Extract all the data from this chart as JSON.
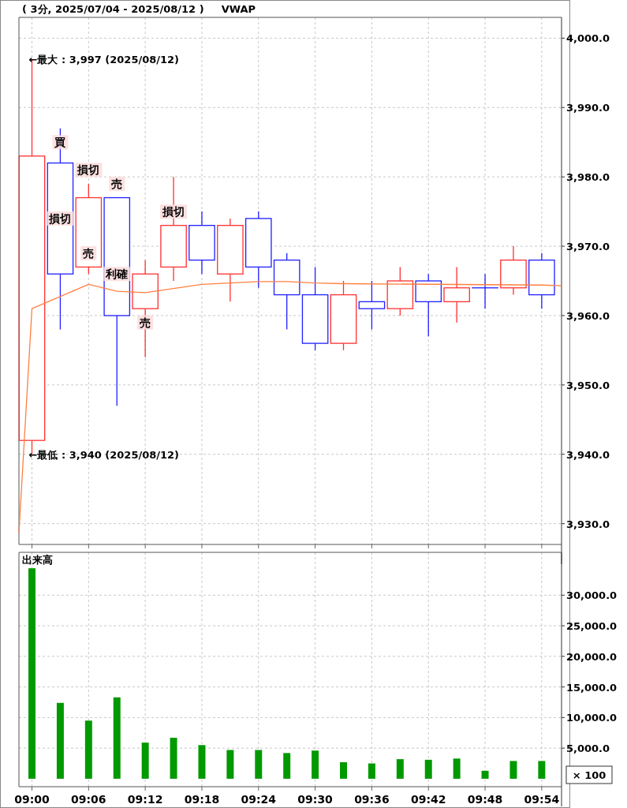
{
  "chart_data": [
    {
      "type": "candlestick",
      "title": "( 3分, 2025/07/04 - 2025/08/12 )",
      "x": [
        9.0,
        9.05,
        9.1,
        9.15,
        9.2,
        9.25,
        9.3,
        9.35,
        9.4,
        9.45,
        9.5,
        9.55,
        9.6,
        9.65,
        9.7,
        9.75,
        9.8,
        9.85,
        9.9
      ],
      "ohlc": [
        [
          3942,
          3997,
          3940,
          3983
        ],
        [
          3982,
          3987,
          3958,
          3966
        ],
        [
          3967,
          3979,
          3966,
          3977
        ],
        [
          3977,
          3977,
          3947,
          3960
        ],
        [
          3961,
          3968,
          3954,
          3966
        ],
        [
          3967,
          3980,
          3965,
          3973
        ],
        [
          3973,
          3975,
          3966,
          3968
        ],
        [
          3966,
          3974,
          3962,
          3973
        ],
        [
          3974,
          3975,
          3964,
          3967
        ],
        [
          3968,
          3969,
          3958,
          3963
        ],
        [
          3963,
          3967,
          3955,
          3956
        ],
        [
          3956,
          3965,
          3955,
          3963
        ],
        [
          3962,
          3965,
          3958,
          3961
        ],
        [
          3961,
          3967,
          3960,
          3965
        ],
        [
          3965,
          3966,
          3957,
          3962
        ],
        [
          3962,
          3967,
          3959,
          3964
        ],
        [
          3964,
          3966,
          3961,
          3964
        ],
        [
          3964,
          3970,
          3963,
          3968
        ],
        [
          3968,
          3969,
          3961,
          3963
        ]
      ],
      "colors": [
        "#ff3030",
        "#2020ff",
        "#ff3030",
        "#2020ff",
        "#ff3030",
        "#ff3030",
        "#2020ff",
        "#ff3030",
        "#2020ff",
        "#2020ff",
        "#2020ff",
        "#ff3030",
        "#2020ff",
        "#ff3030",
        "#2020ff",
        "#ff3030",
        "#2020ff",
        "#ff3030",
        "#2020ff"
      ],
      "series": [
        {
          "name": "VWAP",
          "type": "line",
          "color": "#ff8040",
          "x": [
            8.977,
            9.0,
            9.1,
            9.15,
            9.2,
            9.3,
            9.4,
            9.45,
            9.5,
            9.55,
            9.9,
            9.935
          ],
          "values": [
            3928.7,
            3961,
            3964.5,
            3963.5,
            3963.3,
            3964.5,
            3964.9,
            3964.9,
            3964.7,
            3964.6,
            3964.4,
            3964.3
          ]
        }
      ],
      "annotations": [
        {
          "text": "←最大 : 3,997 (2025/08/12)",
          "x": 9.0,
          "y": 3997
        },
        {
          "text": "←最低 : 3,940 (2025/08/12)",
          "x": 9.0,
          "y": 3940
        },
        {
          "text": "買",
          "x": 9.05,
          "y": 3985
        },
        {
          "text": "損切",
          "x": 9.05,
          "y": 3974
        },
        {
          "text": "損切",
          "x": 9.1,
          "y": 3981
        },
        {
          "text": "売",
          "x": 9.1,
          "y": 3969
        },
        {
          "text": "売",
          "x": 9.15,
          "y": 3979
        },
        {
          "text": "利確",
          "x": 9.15,
          "y": 3966
        },
        {
          "text": "売",
          "x": 9.2,
          "y": 3959
        },
        {
          "text": "損切",
          "x": 9.25,
          "y": 3975
        }
      ],
      "xlim": [
        8.977,
        9.935
      ],
      "ylim": [
        3927,
        4003
      ],
      "xticks": [
        {
          "value": 9.0,
          "label": null
        },
        {
          "value": 9.1,
          "label": null
        },
        {
          "value": 9.2,
          "label": null
        },
        {
          "value": 9.3,
          "label": null
        },
        {
          "value": 9.4,
          "label": null
        },
        {
          "value": 9.5,
          "label": null
        },
        {
          "value": 9.6,
          "label": null
        },
        {
          "value": 9.7,
          "label": null
        },
        {
          "value": 9.8,
          "label": null
        },
        {
          "value": 9.9,
          "label": null
        }
      ],
      "yticks": [
        {
          "value": 3930,
          "label": "3,930.0"
        },
        {
          "value": 3940,
          "label": "3,940.0"
        },
        {
          "value": 3950,
          "label": "3,950.0"
        },
        {
          "value": 3960,
          "label": "3,960.0"
        },
        {
          "value": 3970,
          "label": "3,970.0"
        },
        {
          "value": 3980,
          "label": "3,980.0"
        },
        {
          "value": 3990,
          "label": "3,990.0"
        },
        {
          "value": 4000,
          "label": "4,000.0"
        }
      ],
      "grid": true,
      "tick_labels": "y"
    },
    {
      "type": "bar",
      "title": "出来高",
      "color": "#009900",
      "x": [
        9.0,
        9.05,
        9.1,
        9.15,
        9.2,
        9.25,
        9.3,
        9.35,
        9.4,
        9.45,
        9.5,
        9.55,
        9.6,
        9.65,
        9.7,
        9.75,
        9.8,
        9.85,
        9.9
      ],
      "values": [
        34400,
        12400,
        9500,
        13300,
        5900,
        6700,
        5500,
        4700,
        4700,
        4200,
        4600,
        2700,
        2500,
        3200,
        3100,
        3300,
        1300,
        2900,
        2900
      ],
      "annotations": [
        "× 100"
      ],
      "xlim": [
        8.977,
        9.935
      ],
      "ylim": [
        -1300,
        37000
      ],
      "xticks": [
        {
          "value": 9.0,
          "label": "09:00"
        },
        {
          "value": 9.1,
          "label": "09:06"
        },
        {
          "value": 9.2,
          "label": "09:12"
        },
        {
          "value": 9.3,
          "label": "09:18"
        },
        {
          "value": 9.4,
          "label": "09:24"
        },
        {
          "value": 9.5,
          "label": "09:30"
        },
        {
          "value": 9.6,
          "label": "09:36"
        },
        {
          "value": 9.7,
          "label": "09:42"
        },
        {
          "value": 9.8,
          "label": "09:48"
        },
        {
          "value": 9.9,
          "label": "09:54"
        }
      ],
      "yticks": [
        {
          "value": 5000,
          "label": "5,000.0"
        },
        {
          "value": 10000,
          "label": "10,000.0"
        },
        {
          "value": 15000,
          "label": "15,000.0"
        },
        {
          "value": 20000,
          "label": "20,000.0"
        },
        {
          "value": 25000,
          "label": "25,000.0"
        },
        {
          "value": 30000,
          "label": "30,000.0"
        }
      ],
      "grid": true
    }
  ]
}
